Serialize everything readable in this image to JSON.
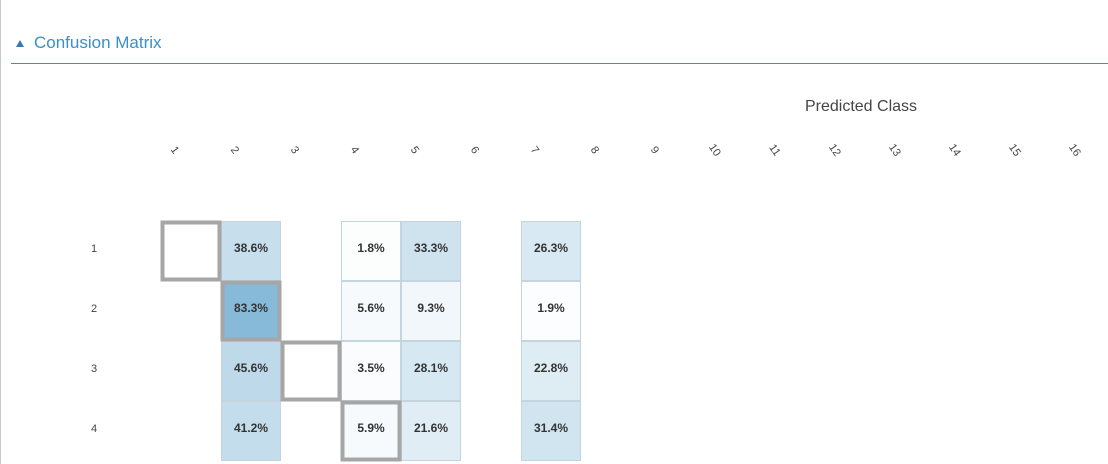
{
  "section": {
    "title": "Confusion Matrix",
    "toggle_icon": "triangle-collapse-icon",
    "accent_color": "#3a8fc7"
  },
  "chart_data": {
    "type": "heatmap",
    "title": "Confusion Matrix",
    "xlabel": "Predicted Class",
    "ylabel": "",
    "x_categories": [
      "1",
      "2",
      "3",
      "4",
      "5",
      "6",
      "7",
      "8",
      "9",
      "10",
      "11",
      "12",
      "13",
      "14",
      "15",
      "16"
    ],
    "y_categories": [
      "1",
      "2",
      "3",
      "4"
    ],
    "value_unit": "%",
    "cells": [
      {
        "actual": "1",
        "predicted": "2",
        "value": 38.6
      },
      {
        "actual": "1",
        "predicted": "4",
        "value": 1.8
      },
      {
        "actual": "1",
        "predicted": "5",
        "value": 33.3
      },
      {
        "actual": "1",
        "predicted": "7",
        "value": 26.3
      },
      {
        "actual": "2",
        "predicted": "2",
        "value": 83.3
      },
      {
        "actual": "2",
        "predicted": "4",
        "value": 5.6
      },
      {
        "actual": "2",
        "predicted": "5",
        "value": 9.3
      },
      {
        "actual": "2",
        "predicted": "7",
        "value": 1.9
      },
      {
        "actual": "3",
        "predicted": "2",
        "value": 45.6
      },
      {
        "actual": "3",
        "predicted": "4",
        "value": 3.5
      },
      {
        "actual": "3",
        "predicted": "5",
        "value": 28.1
      },
      {
        "actual": "3",
        "predicted": "7",
        "value": 22.8
      },
      {
        "actual": "4",
        "predicted": "2",
        "value": 41.2
      },
      {
        "actual": "4",
        "predicted": "4",
        "value": 5.9
      },
      {
        "actual": "4",
        "predicted": "5",
        "value": 21.6
      },
      {
        "actual": "4",
        "predicted": "7",
        "value": 31.4
      }
    ],
    "color_scale": [
      "#ffffff",
      "#86bad8"
    ],
    "diagonal_highlight_color": "#a6a6a6",
    "grid": false,
    "legend": "none"
  }
}
